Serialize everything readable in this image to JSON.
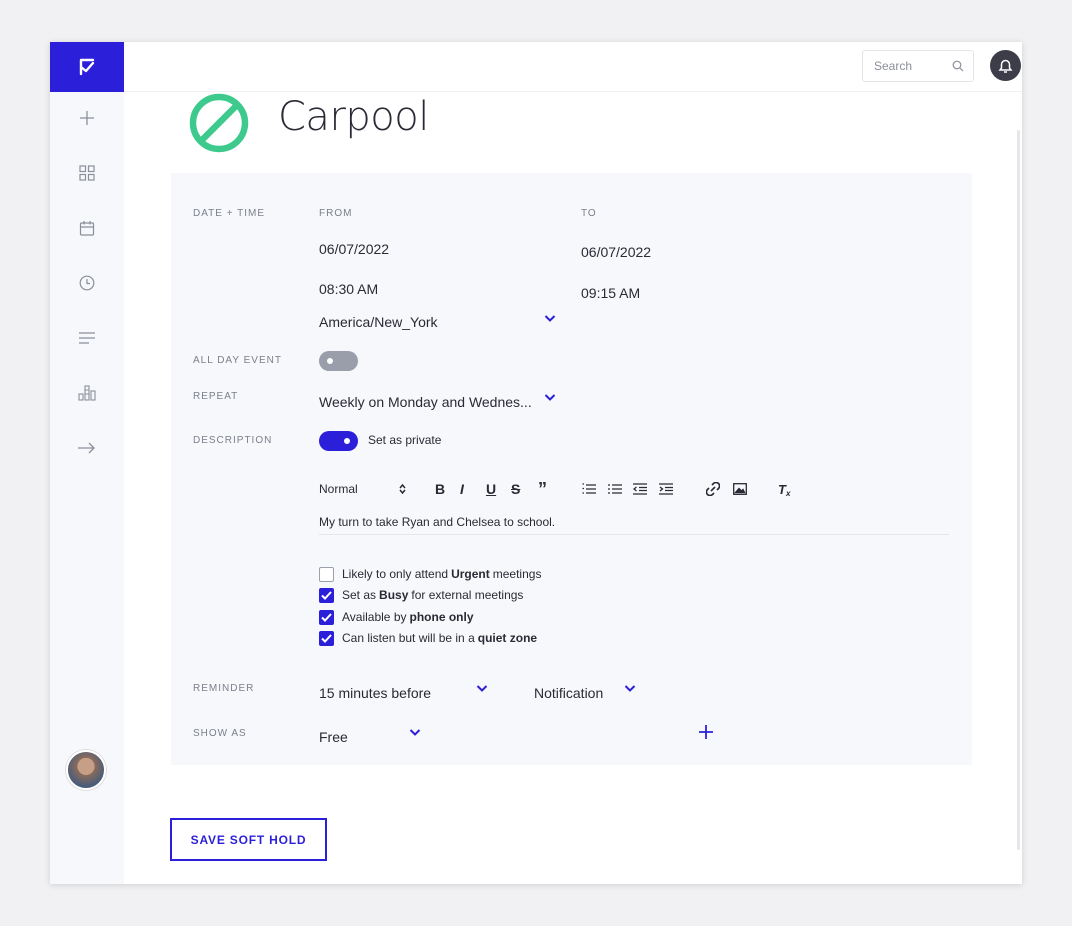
{
  "search": {
    "placeholder": "Search"
  },
  "event": {
    "title": "Carpool",
    "status_icon": "no-entry-icon"
  },
  "fields": {
    "date_time_label": "DATE + TIME",
    "from_label": "FROM",
    "to_label": "TO",
    "from_date": "06/07/2022",
    "from_time": "08:30 AM",
    "to_date": "06/07/2022",
    "to_time": "09:15 AM",
    "timezone": "America/New_York",
    "all_day_label": "ALL DAY EVENT",
    "all_day_on": false,
    "repeat_label": "REPEAT",
    "repeat_value": "Weekly on Monday and Wednes...",
    "description_label": "DESCRIPTION",
    "private_label": "Set as private",
    "private_on": true,
    "reminder_label": "REMINDER",
    "reminder_time": "15 minutes before",
    "reminder_type": "Notification",
    "show_as_label": "SHOW AS",
    "show_as_value": "Free"
  },
  "editor": {
    "format": "Normal",
    "content": "My turn to take Ryan and Chelsea to school."
  },
  "checkboxes": [
    {
      "pre": "Likely to only attend",
      "bold": "Urgent",
      "post": "meetings",
      "checked": false
    },
    {
      "pre": "Set as",
      "bold": "Busy",
      "post": "for external meetings",
      "checked": true
    },
    {
      "pre": "Available by",
      "bold": "phone only",
      "post": "",
      "checked": true
    },
    {
      "pre": "Can listen but will be in a",
      "bold": "quiet zone",
      "post": "",
      "checked": true
    }
  ],
  "actions": {
    "save_label": "SAVE SOFT HOLD"
  },
  "colors": {
    "accent": "#2c1fd9",
    "status_green": "#3ec98d",
    "toggle_off": "#9a9eab"
  }
}
